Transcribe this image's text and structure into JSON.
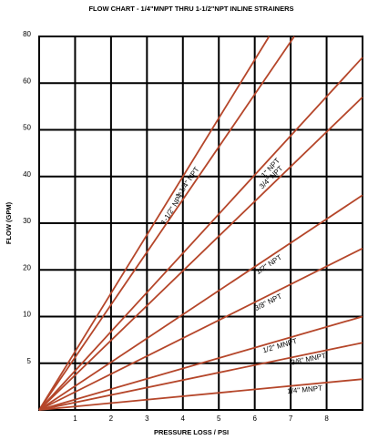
{
  "chart_data": {
    "type": "line",
    "title": "FLOW CHART - 1/4\"MNPT THRU 1-1/2\"NPT INLINE STRAINERS",
    "x_label": "PRESSURE LOSS / PSI",
    "y_label": "FLOW (GPM)",
    "xlim": [
      0,
      9
    ],
    "xticks": [
      1,
      2,
      3,
      4,
      5,
      6,
      7,
      8
    ],
    "ylim": [
      0,
      80
    ],
    "yticks": [
      5,
      10,
      20,
      30,
      40,
      50,
      60,
      80
    ],
    "grid": true,
    "series": [
      {
        "name": "1-1/2\" NPT",
        "color": "#b5462a",
        "x": [
          0,
          6.4
        ],
        "values": [
          0,
          80
        ]
      },
      {
        "name": "1-1/4\" NPT",
        "color": "#b5462a",
        "x": [
          0,
          7.1
        ],
        "values": [
          0,
          80
        ]
      },
      {
        "name": "1\" NPT",
        "color": "#b5462a",
        "x": [
          0,
          9
        ],
        "values": [
          0,
          71
        ]
      },
      {
        "name": "3/4\" NPT",
        "color": "#b5462a",
        "x": [
          0,
          9
        ],
        "values": [
          0,
          57
        ]
      },
      {
        "name": "1/2\" NPT",
        "color": "#b5462a",
        "x": [
          0,
          9
        ],
        "values": [
          0,
          36
        ]
      },
      {
        "name": "3/8\" NPT",
        "color": "#b5462a",
        "x": [
          0,
          9
        ],
        "values": [
          0,
          24.6
        ]
      },
      {
        "name": "1/2\" MNPT",
        "color": "#b5462a",
        "x": [
          0,
          9
        ],
        "values": [
          0,
          10
        ]
      },
      {
        "name": "3/8\" MNPT",
        "color": "#b5462a",
        "x": [
          0,
          9
        ],
        "values": [
          0,
          7.2
        ]
      },
      {
        "name": "1/4\" MNPT",
        "color": "#b5462a",
        "x": [
          0,
          9
        ],
        "values": [
          0,
          3.3
        ]
      }
    ]
  }
}
